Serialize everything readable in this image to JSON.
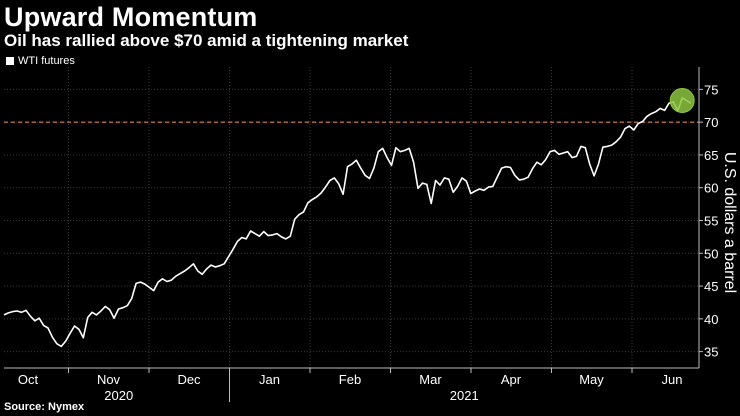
{
  "chart_data": {
    "type": "line",
    "title": "Upward Momentum",
    "subtitle": "Oil has rallied above $70 amid a tightening market",
    "source": "Source: Nymex",
    "ylabel": "U.S. dollars a barrel",
    "ylim": [
      32.5,
      77.5
    ],
    "yticks": [
      35,
      40,
      45,
      50,
      55,
      60,
      65,
      70,
      75
    ],
    "reference_line": {
      "value": 70,
      "color": "#e0824a"
    },
    "months": [
      "Oct",
      "Nov",
      "Dec",
      "Jan",
      "Feb",
      "Mar",
      "Apr",
      "May",
      "Jun"
    ],
    "years": [
      "2020",
      "2021"
    ],
    "grid": true,
    "legend_position": "top-left",
    "line_color": "#ffffff",
    "highlight_color": "#8cc63f",
    "series": [
      {
        "name": "WTI futures",
        "values": [
          40.6,
          40.9,
          41.1,
          41.2,
          41.0,
          41.3,
          40.4,
          39.7,
          40.1,
          39.0,
          38.6,
          37.2,
          36.2,
          35.8,
          36.6,
          37.8,
          38.9,
          38.4,
          37.1,
          40.2,
          41.0,
          40.6,
          41.2,
          41.9,
          41.4,
          40.1,
          41.5,
          41.7,
          42.0,
          43.1,
          45.4,
          45.6,
          45.3,
          44.8,
          44.3,
          45.6,
          46.1,
          45.7,
          45.9,
          46.5,
          46.9,
          47.3,
          47.8,
          48.4,
          47.3,
          46.8,
          47.6,
          48.2,
          47.9,
          48.1,
          48.4,
          49.5,
          50.6,
          51.8,
          52.4,
          52.2,
          53.4,
          53.0,
          52.6,
          53.3,
          52.7,
          52.8,
          53.0,
          52.5,
          52.2,
          52.6,
          55.2,
          55.9,
          56.3,
          57.7,
          58.2,
          58.6,
          59.2,
          60.1,
          61.1,
          61.5,
          60.6,
          59.0,
          63.2,
          63.6,
          64.2,
          63.0,
          61.9,
          61.4,
          63.0,
          65.5,
          66.0,
          64.6,
          63.4,
          66.1,
          65.5,
          65.7,
          66.0,
          63.9,
          59.9,
          60.7,
          60.5,
          57.6,
          61.1,
          60.4,
          61.5,
          61.3,
          59.3,
          60.2,
          61.5,
          61.0,
          59.1,
          59.5,
          59.8,
          59.6,
          60.1,
          60.2,
          61.6,
          63.0,
          63.2,
          63.1,
          61.9,
          61.2,
          61.3,
          61.6,
          62.9,
          63.9,
          63.5,
          64.3,
          65.5,
          65.7,
          65.1,
          65.3,
          65.5,
          64.6,
          64.8,
          66.3,
          66.1,
          63.6,
          61.8,
          63.6,
          66.2,
          66.3,
          66.5,
          67.0,
          67.7,
          69.0,
          69.4,
          68.8,
          69.8,
          70.1,
          70.9,
          71.3,
          71.6,
          72.1,
          71.8,
          72.9,
          73.1,
          71.7,
          73.7,
          73.3,
          72.9
        ]
      }
    ],
    "highlight_value": 73.3
  }
}
